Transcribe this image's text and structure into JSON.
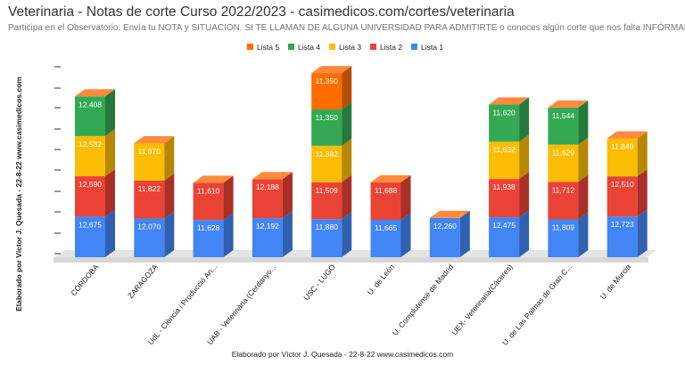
{
  "chart_data": {
    "type": "bar",
    "stacked": true,
    "style": "3d",
    "title": "Veterinaria - Notas de corte Curso 2022/2023 - casimedicos.com/cortes/veterinaria",
    "subtitle": "Participa en el Observatorio: Envía tu NOTA y SITUACION. SI TE LLAMAN DE ALGUNA UNIVERSIDAD PARA ADMITIRTE o conoces algún corte que nos falta INFÓRMANOS",
    "ylabel": "Elaborado por Víctor J. Quesada - 22-8-22  www.casimedicos.com",
    "xlabel": "Elaborado por Víctor J. Quesada - 22-8-22  www.casimedicos.com",
    "legend_position": "top",
    "grid": false,
    "categories": [
      "CÓRDOBA",
      "ZARAGOZA",
      "UdL - Ciència i Producció An...",
      "UAB - Veterinària (Cerdanyo...",
      "USC - LUGO",
      "U. de León",
      "U. Complutense de Madrid",
      "UEX- Veterinaria(Cáceres)",
      "U. de Las Palmas de Gran C...",
      "U. de Murcia"
    ],
    "series": [
      {
        "name": "Lista 1",
        "color": "#4285f4",
        "values": [
          12.675,
          12.07,
          11.628,
          12.192,
          11.88,
          11.665,
          12.26,
          12.475,
          11.809,
          12.723
        ],
        "labels": [
          "12,675",
          "12,070",
          "11,628",
          "12,192",
          "11,880",
          "11,665",
          "12,260",
          "12,475",
          "11,809",
          "12,723"
        ]
      },
      {
        "name": "Lista 2",
        "color": "#ea4335",
        "values": [
          12.59,
          11.822,
          11.61,
          12.188,
          11.509,
          11.688,
          null,
          11.938,
          11.712,
          12.51
        ],
        "labels": [
          "12,590",
          "11,822",
          "11,610",
          "12,188",
          "11,509",
          "11,688",
          "",
          "11,938",
          "11,712",
          "12,510"
        ]
      },
      {
        "name": "Lista 3",
        "color": "#fbbc04",
        "values": [
          12.532,
          11.67,
          null,
          null,
          11.382,
          null,
          null,
          11.632,
          11.629,
          11.849
        ],
        "labels": [
          "12,532",
          "11,670",
          "",
          "",
          "11,382",
          "",
          "",
          "11,632",
          "11,629",
          "11,849"
        ]
      },
      {
        "name": "Lista 4",
        "color": "#34a853",
        "values": [
          12.408,
          null,
          null,
          null,
          11.35,
          null,
          null,
          11.62,
          11.544,
          null
        ],
        "labels": [
          "12,408",
          "",
          "",
          "",
          "11,350",
          "",
          "",
          "11,620",
          "11,544",
          ""
        ]
      },
      {
        "name": "Lista 5",
        "color": "#ff6d01",
        "values": [
          null,
          null,
          null,
          null,
          11.35,
          null,
          null,
          null,
          null,
          null
        ],
        "labels": [
          "",
          "",
          "",
          "",
          "11,350",
          "",
          "",
          "",
          "",
          ""
        ]
      }
    ]
  }
}
